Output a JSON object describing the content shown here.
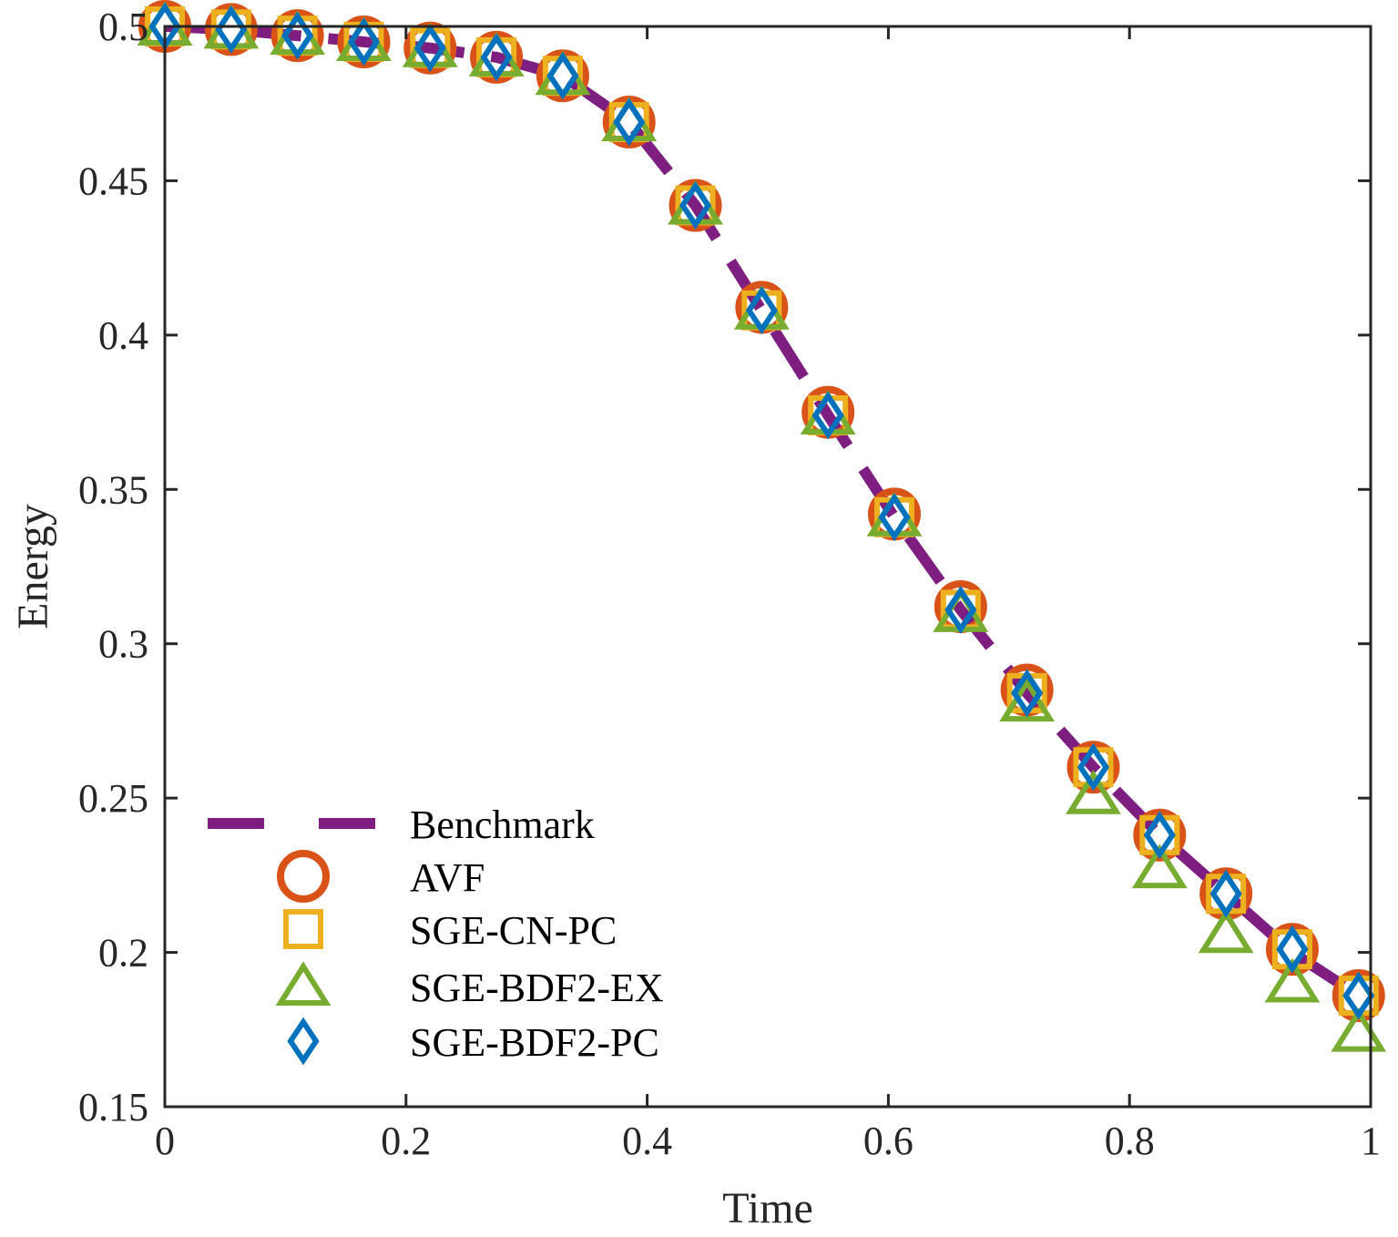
{
  "colors": {
    "benchmark": "#7E1E80",
    "avf": "#D95319",
    "sge_cn_pc": "#EDB120",
    "sge_bdf2_ex": "#77AC30",
    "sge_bdf2_pc": "#0072BD",
    "axis": "#262626"
  },
  "chart_data": {
    "type": "line",
    "title": "",
    "xlabel": "Time",
    "ylabel": "Energy",
    "xlim": [
      0,
      1
    ],
    "ylim": [
      0.15,
      0.5
    ],
    "grid": false,
    "legend_position": "bottom-left",
    "x_ticks": [
      0,
      0.2,
      0.4,
      0.6,
      0.8,
      1
    ],
    "x_tick_labels": [
      "0",
      "0.2",
      "0.4",
      "0.6",
      "0.8",
      "1"
    ],
    "y_ticks": [
      0.15,
      0.2,
      0.25,
      0.3,
      0.35,
      0.4,
      0.45,
      0.5
    ],
    "y_tick_labels": [
      "0.15",
      "0.2",
      "0.25",
      "0.3",
      "0.35",
      "0.4",
      "0.45",
      "0.5"
    ],
    "x": [
      0,
      0.055,
      0.11,
      0.165,
      0.22,
      0.275,
      0.33,
      0.385,
      0.44,
      0.495,
      0.55,
      0.605,
      0.66,
      0.715,
      0.77,
      0.825,
      0.88,
      0.935,
      0.99
    ],
    "series": [
      {
        "name": "Benchmark",
        "style": "dashed-line",
        "x": [
          0,
          0.055,
          0.11,
          0.165,
          0.22,
          0.275,
          0.33,
          0.385,
          0.44,
          0.495,
          0.55,
          0.605,
          0.66,
          0.715,
          0.77,
          0.825,
          0.88,
          0.935,
          0.99
        ],
        "values": [
          0.5,
          0.499,
          0.497,
          0.495,
          0.493,
          0.49,
          0.484,
          0.469,
          0.442,
          0.408,
          0.374,
          0.341,
          0.311,
          0.284,
          0.26,
          0.238,
          0.219,
          0.2,
          0.186
        ]
      },
      {
        "name": "AVF",
        "marker": "circle",
        "values": [
          0.5,
          0.499,
          0.497,
          0.495,
          0.493,
          0.49,
          0.484,
          0.469,
          0.442,
          0.409,
          0.375,
          0.342,
          0.312,
          0.285,
          0.26,
          0.238,
          0.219,
          0.201,
          0.186
        ]
      },
      {
        "name": "SGE-CN-PC",
        "marker": "square",
        "values": [
          0.5,
          0.499,
          0.497,
          0.495,
          0.493,
          0.49,
          0.484,
          0.469,
          0.442,
          0.408,
          0.374,
          0.341,
          0.311,
          0.284,
          0.26,
          0.238,
          0.219,
          0.201,
          0.186
        ]
      },
      {
        "name": "SGE-BDF2-EX",
        "marker": "triangle",
        "values": [
          0.5,
          0.499,
          0.497,
          0.495,
          0.493,
          0.49,
          0.484,
          0.469,
          0.442,
          0.408,
          0.374,
          0.341,
          0.31,
          0.281,
          0.251,
          0.227,
          0.206,
          0.19,
          0.174
        ]
      },
      {
        "name": "SGE-BDF2-PC",
        "marker": "diamond",
        "values": [
          0.5,
          0.499,
          0.497,
          0.495,
          0.493,
          0.49,
          0.484,
          0.469,
          0.442,
          0.408,
          0.374,
          0.341,
          0.311,
          0.284,
          0.26,
          0.238,
          0.219,
          0.201,
          0.186
        ]
      }
    ],
    "legend": [
      "Benchmark",
      "AVF",
      "SGE-CN-PC",
      "SGE-BDF2-EX",
      "SGE-BDF2-PC"
    ]
  }
}
